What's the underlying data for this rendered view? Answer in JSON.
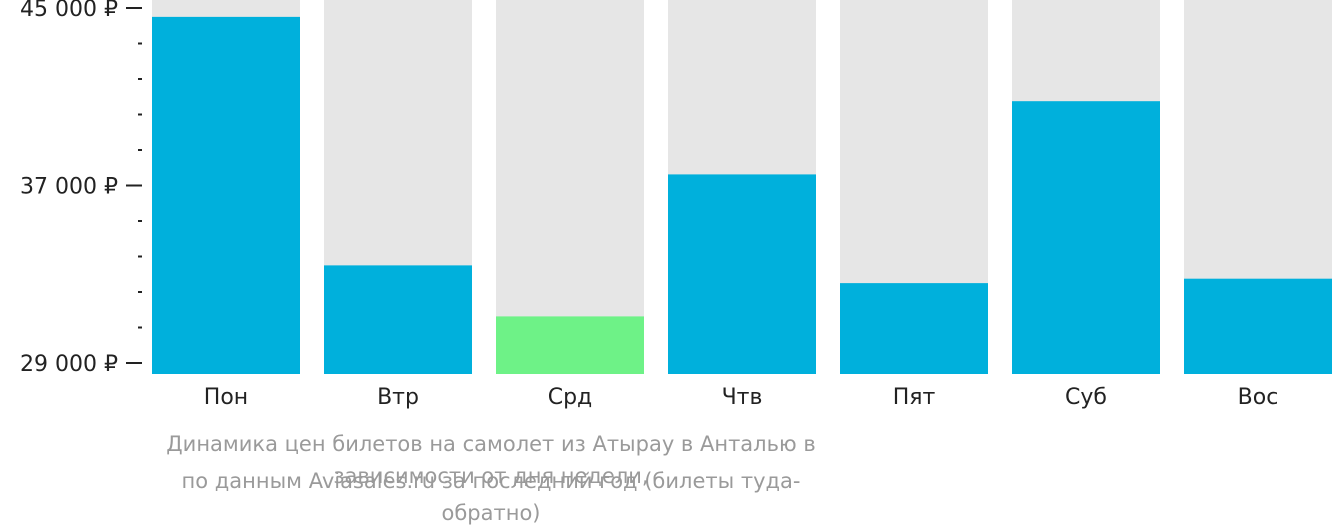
{
  "chart_data": {
    "type": "bar",
    "categories": [
      "Пон",
      "Втр",
      "Срд",
      "Чтв",
      "Пят",
      "Суб",
      "Вос"
    ],
    "values": [
      44600,
      33400,
      31100,
      37500,
      32600,
      40800,
      32800
    ],
    "highlight_index": 2,
    "ylim": [
      29000,
      45000
    ],
    "yticks": [
      29000,
      37000,
      45000
    ],
    "ytick_labels": [
      "29 000 ₽",
      "37 000 ₽",
      "45 000 ₽"
    ],
    "minor_ticks": [
      30600,
      32200,
      33800,
      35400,
      38600,
      40200,
      41800,
      43400
    ],
    "title": "",
    "xlabel": "",
    "ylabel": "",
    "grid": false,
    "colors": {
      "bar": "#00b0dc",
      "highlight": "#6ef287",
      "background_bar": "#e6e6e6",
      "axis": "#222222",
      "tick_label": "#222222",
      "caption": "#9a9a9a"
    }
  },
  "caption": {
    "line1": "Динамика цен билетов на самолет из Атырау в Анталью в зависимости от дня недели,",
    "line2": "по данным Aviasales.ru за последний год (билеты туда-обратно)"
  }
}
